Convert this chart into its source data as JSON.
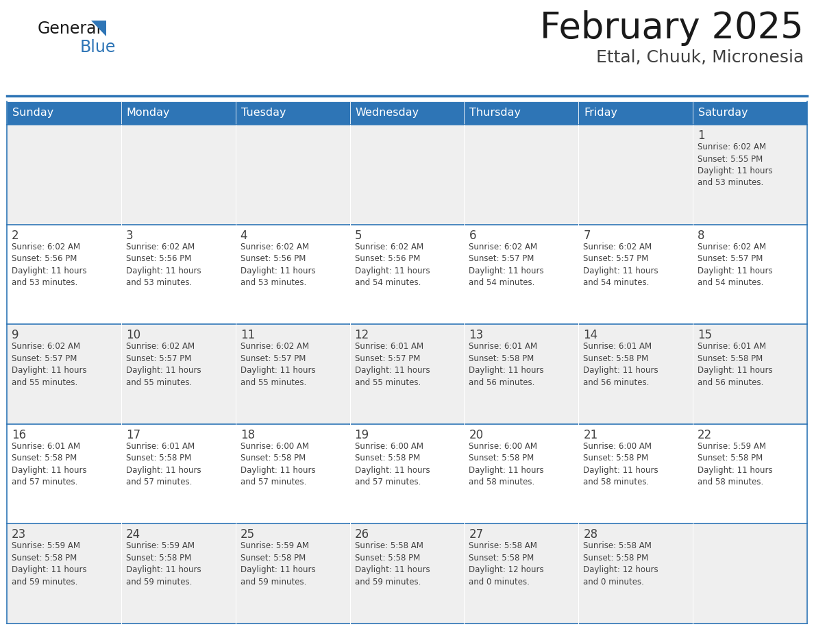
{
  "title": "February 2025",
  "subtitle": "Ettal, Chuuk, Micronesia",
  "header_bg": "#2E75B6",
  "header_text": "#FFFFFF",
  "cell_bg_odd": "#EFEFEF",
  "cell_bg_even": "#FFFFFF",
  "border_color": "#2E75B6",
  "text_color": "#404040",
  "day_number_color": "#404040",
  "day_headers": [
    "Sunday",
    "Monday",
    "Tuesday",
    "Wednesday",
    "Thursday",
    "Friday",
    "Saturday"
  ],
  "weeks": [
    [
      {
        "day": null,
        "info": ""
      },
      {
        "day": null,
        "info": ""
      },
      {
        "day": null,
        "info": ""
      },
      {
        "day": null,
        "info": ""
      },
      {
        "day": null,
        "info": ""
      },
      {
        "day": null,
        "info": ""
      },
      {
        "day": 1,
        "info": "Sunrise: 6:02 AM\nSunset: 5:55 PM\nDaylight: 11 hours\nand 53 minutes."
      }
    ],
    [
      {
        "day": 2,
        "info": "Sunrise: 6:02 AM\nSunset: 5:56 PM\nDaylight: 11 hours\nand 53 minutes."
      },
      {
        "day": 3,
        "info": "Sunrise: 6:02 AM\nSunset: 5:56 PM\nDaylight: 11 hours\nand 53 minutes."
      },
      {
        "day": 4,
        "info": "Sunrise: 6:02 AM\nSunset: 5:56 PM\nDaylight: 11 hours\nand 53 minutes."
      },
      {
        "day": 5,
        "info": "Sunrise: 6:02 AM\nSunset: 5:56 PM\nDaylight: 11 hours\nand 54 minutes."
      },
      {
        "day": 6,
        "info": "Sunrise: 6:02 AM\nSunset: 5:57 PM\nDaylight: 11 hours\nand 54 minutes."
      },
      {
        "day": 7,
        "info": "Sunrise: 6:02 AM\nSunset: 5:57 PM\nDaylight: 11 hours\nand 54 minutes."
      },
      {
        "day": 8,
        "info": "Sunrise: 6:02 AM\nSunset: 5:57 PM\nDaylight: 11 hours\nand 54 minutes."
      }
    ],
    [
      {
        "day": 9,
        "info": "Sunrise: 6:02 AM\nSunset: 5:57 PM\nDaylight: 11 hours\nand 55 minutes."
      },
      {
        "day": 10,
        "info": "Sunrise: 6:02 AM\nSunset: 5:57 PM\nDaylight: 11 hours\nand 55 minutes."
      },
      {
        "day": 11,
        "info": "Sunrise: 6:02 AM\nSunset: 5:57 PM\nDaylight: 11 hours\nand 55 minutes."
      },
      {
        "day": 12,
        "info": "Sunrise: 6:01 AM\nSunset: 5:57 PM\nDaylight: 11 hours\nand 55 minutes."
      },
      {
        "day": 13,
        "info": "Sunrise: 6:01 AM\nSunset: 5:58 PM\nDaylight: 11 hours\nand 56 minutes."
      },
      {
        "day": 14,
        "info": "Sunrise: 6:01 AM\nSunset: 5:58 PM\nDaylight: 11 hours\nand 56 minutes."
      },
      {
        "day": 15,
        "info": "Sunrise: 6:01 AM\nSunset: 5:58 PM\nDaylight: 11 hours\nand 56 minutes."
      }
    ],
    [
      {
        "day": 16,
        "info": "Sunrise: 6:01 AM\nSunset: 5:58 PM\nDaylight: 11 hours\nand 57 minutes."
      },
      {
        "day": 17,
        "info": "Sunrise: 6:01 AM\nSunset: 5:58 PM\nDaylight: 11 hours\nand 57 minutes."
      },
      {
        "day": 18,
        "info": "Sunrise: 6:00 AM\nSunset: 5:58 PM\nDaylight: 11 hours\nand 57 minutes."
      },
      {
        "day": 19,
        "info": "Sunrise: 6:00 AM\nSunset: 5:58 PM\nDaylight: 11 hours\nand 57 minutes."
      },
      {
        "day": 20,
        "info": "Sunrise: 6:00 AM\nSunset: 5:58 PM\nDaylight: 11 hours\nand 58 minutes."
      },
      {
        "day": 21,
        "info": "Sunrise: 6:00 AM\nSunset: 5:58 PM\nDaylight: 11 hours\nand 58 minutes."
      },
      {
        "day": 22,
        "info": "Sunrise: 5:59 AM\nSunset: 5:58 PM\nDaylight: 11 hours\nand 58 minutes."
      }
    ],
    [
      {
        "day": 23,
        "info": "Sunrise: 5:59 AM\nSunset: 5:58 PM\nDaylight: 11 hours\nand 59 minutes."
      },
      {
        "day": 24,
        "info": "Sunrise: 5:59 AM\nSunset: 5:58 PM\nDaylight: 11 hours\nand 59 minutes."
      },
      {
        "day": 25,
        "info": "Sunrise: 5:59 AM\nSunset: 5:58 PM\nDaylight: 11 hours\nand 59 minutes."
      },
      {
        "day": 26,
        "info": "Sunrise: 5:58 AM\nSunset: 5:58 PM\nDaylight: 11 hours\nand 59 minutes."
      },
      {
        "day": 27,
        "info": "Sunrise: 5:58 AM\nSunset: 5:58 PM\nDaylight: 12 hours\nand 0 minutes."
      },
      {
        "day": 28,
        "info": "Sunrise: 5:58 AM\nSunset: 5:58 PM\nDaylight: 12 hours\nand 0 minutes."
      },
      {
        "day": null,
        "info": ""
      }
    ]
  ]
}
